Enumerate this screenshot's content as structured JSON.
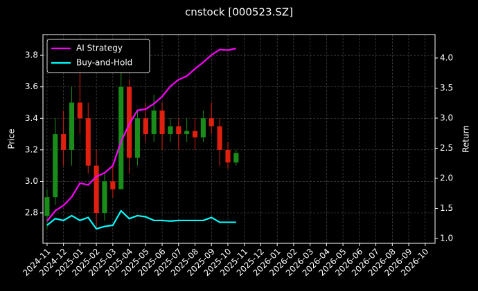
{
  "chart_data": {
    "type": "candlestick",
    "title": "cnstock [000523.SZ]",
    "ylabel": "Price",
    "y2label": "Return",
    "x": [
      0,
      0.5,
      1,
      1.5,
      2,
      2.5,
      3,
      3.5,
      4,
      4.5,
      5,
      5.5,
      6,
      6.5,
      7,
      7.5,
      8,
      8.5,
      9,
      9.5,
      10,
      10.5,
      11,
      11.5
    ],
    "open": [
      2.78,
      2.9,
      3.3,
      3.2,
      3.5,
      3.4,
      3.1,
      2.8,
      3.0,
      2.95,
      3.6,
      3.15,
      3.4,
      3.3,
      3.45,
      3.3,
      3.35,
      3.3,
      3.32,
      3.28,
      3.4,
      3.35,
      3.2,
      3.12
    ],
    "high": [
      2.95,
      3.4,
      3.45,
      3.6,
      3.75,
      3.5,
      3.2,
      3.05,
      3.1,
      3.7,
      3.65,
      3.45,
      3.5,
      3.55,
      3.5,
      3.4,
      3.4,
      3.4,
      3.4,
      3.45,
      3.5,
      3.4,
      3.25,
      3.2
    ],
    "low": [
      2.7,
      2.85,
      3.1,
      3.1,
      3.3,
      3.05,
      2.7,
      2.75,
      2.9,
      2.95,
      3.05,
      3.1,
      3.25,
      3.25,
      3.2,
      3.25,
      3.2,
      3.25,
      3.2,
      3.25,
      3.3,
      3.1,
      3.08,
      3.1
    ],
    "close": [
      2.9,
      3.3,
      3.2,
      3.5,
      3.4,
      3.1,
      2.8,
      3.0,
      2.95,
      3.6,
      3.15,
      3.4,
      3.3,
      3.45,
      3.3,
      3.35,
      3.3,
      3.32,
      3.28,
      3.4,
      3.35,
      3.2,
      3.12,
      3.18
    ],
    "up_color": "#1a8c1a",
    "down_color": "#e0200f",
    "series": [
      {
        "name": "AI Strategy",
        "color": "#ff00ff",
        "axis": "y2",
        "x": [
          0,
          0.5,
          1,
          1.5,
          2,
          2.5,
          3,
          3.5,
          4,
          4.5,
          5,
          5.5,
          6,
          6.5,
          7,
          7.5,
          8,
          8.5,
          9,
          9.5,
          10,
          10.5,
          11,
          11.5
        ],
        "values": [
          1.29,
          1.46,
          1.55,
          1.69,
          1.92,
          1.89,
          2.03,
          2.09,
          2.21,
          2.61,
          2.9,
          3.13,
          3.15,
          3.24,
          3.36,
          3.53,
          3.64,
          3.7,
          3.82,
          3.93,
          4.05,
          4.14,
          4.13,
          4.16
        ]
      },
      {
        "name": "Buy-and-Hold",
        "color": "#00ffff",
        "axis": "y2",
        "x": [
          0,
          0.5,
          1,
          1.5,
          2,
          2.5,
          3,
          3.5,
          4,
          4.5,
          5,
          5.5,
          6,
          6.5,
          7,
          7.5,
          8,
          8.5,
          9,
          9.5,
          10,
          10.5,
          11,
          11.5
        ],
        "values": [
          1.22,
          1.33,
          1.3,
          1.38,
          1.3,
          1.35,
          1.16,
          1.2,
          1.22,
          1.46,
          1.33,
          1.38,
          1.36,
          1.3,
          1.3,
          1.29,
          1.3,
          1.3,
          1.3,
          1.3,
          1.35,
          1.27,
          1.27,
          1.27
        ]
      }
    ],
    "xlim": [
      -0.25,
      23.6
    ],
    "xticks": [
      {
        "value": 0,
        "label": "2024-11"
      },
      {
        "value": 1,
        "label": "2024-12"
      },
      {
        "value": 2,
        "label": "2025-01"
      },
      {
        "value": 3,
        "label": "2025-02"
      },
      {
        "value": 4,
        "label": "2025-03"
      },
      {
        "value": 5,
        "label": "2025-04"
      },
      {
        "value": 6,
        "label": "2025-05"
      },
      {
        "value": 7,
        "label": "2025-06"
      },
      {
        "value": 8,
        "label": "2025-07"
      },
      {
        "value": 9,
        "label": "2025-08"
      },
      {
        "value": 10,
        "label": "2025-09"
      },
      {
        "value": 11,
        "label": "2025-10"
      },
      {
        "value": 12,
        "label": "2025-11"
      },
      {
        "value": 13,
        "label": "2025-12"
      },
      {
        "value": 14,
        "label": "2026-01"
      },
      {
        "value": 15,
        "label": "2026-02"
      },
      {
        "value": 16,
        "label": "2026-03"
      },
      {
        "value": 17,
        "label": "2026-04"
      },
      {
        "value": 18,
        "label": "2026-05"
      },
      {
        "value": 19,
        "label": "2026-06"
      },
      {
        "value": 20,
        "label": "2026-07"
      },
      {
        "value": 21,
        "label": "2026-08"
      },
      {
        "value": 22,
        "label": "2026-09"
      },
      {
        "value": 23,
        "label": "2026-10"
      }
    ],
    "ylim": [
      2.607,
      3.932
    ],
    "yticks": [
      2.8,
      {
        "value": 3,
        "label": "3.0"
      },
      3.2,
      3.4,
      3.6,
      3.8
    ],
    "y2lim": [
      0.92,
      4.39
    ],
    "y2ticks": [
      {
        "value": 1,
        "label": "1.0"
      },
      1.5,
      {
        "value": 2,
        "label": "2.0"
      },
      2.5,
      {
        "value": 3,
        "label": "3.0"
      },
      3.5,
      {
        "value": 4,
        "label": "4.0"
      }
    ],
    "grid": true,
    "legend": "upper left"
  }
}
